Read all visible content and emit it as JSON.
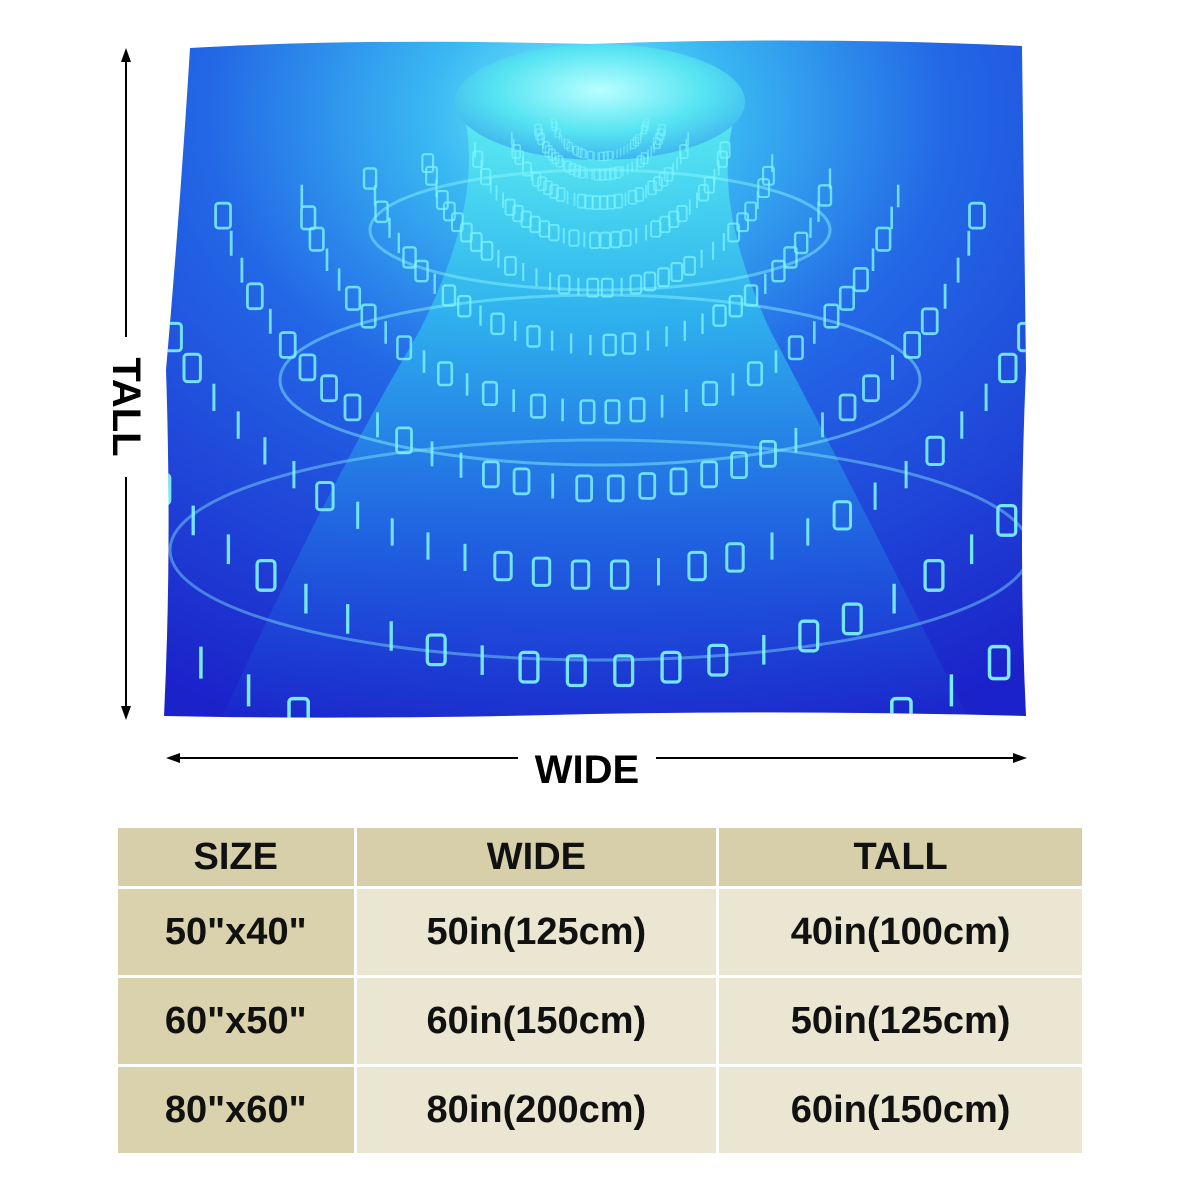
{
  "dimensions": {
    "tall_label": "TALL",
    "wide_label": "WIDE"
  },
  "blanket": {
    "colors": {
      "deep_blue": "#1c2fd0",
      "mid_blue": "#1f63e6",
      "cyan_glow": "#5ff2f0",
      "digit_color": "#7ff6ff"
    }
  },
  "size_table": {
    "headers": [
      "SIZE",
      "WIDE",
      "TALL"
    ],
    "rows": [
      [
        "50\"x40\"",
        "50in(125cm)",
        "40in(100cm)"
      ],
      [
        "60\"x50\"",
        "60in(150cm)",
        "50in(125cm)"
      ],
      [
        "80\"x60\"",
        "80in(200cm)",
        "60in(150cm)"
      ]
    ],
    "colors": {
      "header_bg": "#d6cfa9",
      "size_col_bg": "#d9d2ad",
      "data_bg": "#ebe6d1"
    }
  }
}
